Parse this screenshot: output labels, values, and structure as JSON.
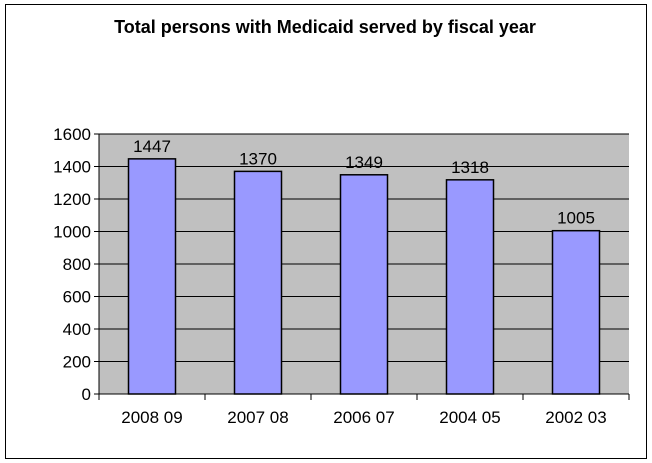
{
  "chart_data": {
    "type": "bar",
    "title": "Total persons with Medicaid served by fiscal year",
    "xlabel": "",
    "ylabel": "",
    "categories": [
      "2008 09",
      "2007 08",
      "2006 07",
      "2004 05",
      "2002 03"
    ],
    "values": [
      1447,
      1370,
      1349,
      1318,
      1005
    ],
    "data_labels": [
      "1447",
      "1370",
      "1349",
      "1318",
      "1005"
    ],
    "ylim": [
      0,
      1600
    ],
    "yticks": [
      0,
      200,
      400,
      600,
      800,
      1000,
      1200,
      1400,
      1600
    ],
    "grid": true,
    "legend": "none",
    "colors": {
      "bar_fill": "#9999ff",
      "bar_stroke": "#000000",
      "plot_background": "#c0c0c0",
      "gridline": "#000000"
    }
  }
}
